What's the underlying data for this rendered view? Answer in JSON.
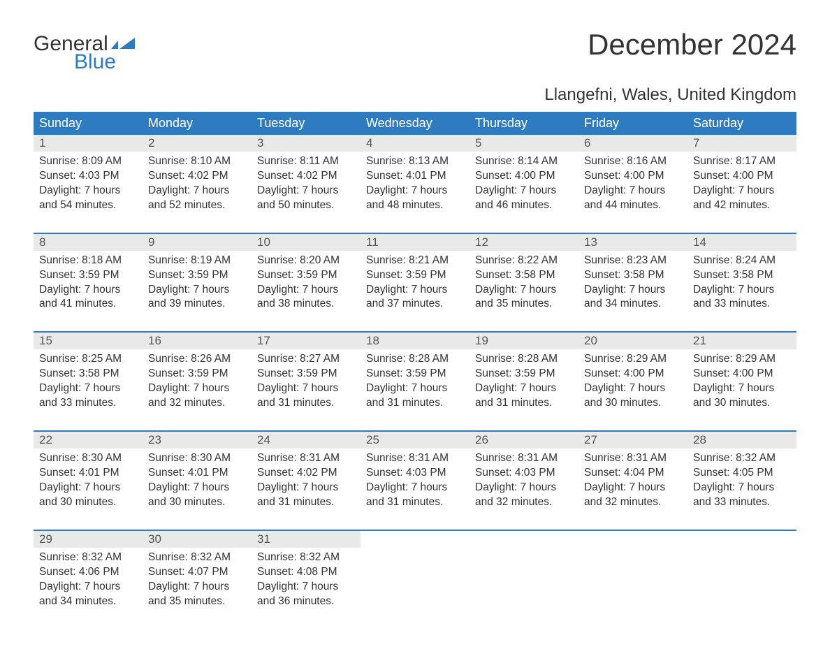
{
  "brand": {
    "line1": "General",
    "line2": "Blue"
  },
  "title": "December 2024",
  "location": "Llangefni, Wales, United Kingdom",
  "colors": {
    "header_bg": "#2f7bbf",
    "header_fg": "#ffffff",
    "daynum_bg": "#e9e9e9",
    "daynum_fg": "#555555",
    "text": "#333333",
    "week_divider": "#2f7bbf",
    "background": "#ffffff",
    "logo_blue": "#2f7bbf"
  },
  "typography": {
    "title_fontsize_pt": 32,
    "location_fontsize_pt": 18,
    "header_fontsize_pt": 13,
    "daynum_fontsize_pt": 13,
    "body_fontsize_pt": 11.5,
    "font_family": "Arial"
  },
  "calendar": {
    "columns": [
      "Sunday",
      "Monday",
      "Tuesday",
      "Wednesday",
      "Thursday",
      "Friday",
      "Saturday"
    ],
    "weeks": [
      [
        {
          "day": "1",
          "sunrise": "8:09 AM",
          "sunset": "4:03 PM",
          "daylight_h": 7,
          "daylight_m": 54
        },
        {
          "day": "2",
          "sunrise": "8:10 AM",
          "sunset": "4:02 PM",
          "daylight_h": 7,
          "daylight_m": 52
        },
        {
          "day": "3",
          "sunrise": "8:11 AM",
          "sunset": "4:02 PM",
          "daylight_h": 7,
          "daylight_m": 50
        },
        {
          "day": "4",
          "sunrise": "8:13 AM",
          "sunset": "4:01 PM",
          "daylight_h": 7,
          "daylight_m": 48
        },
        {
          "day": "5",
          "sunrise": "8:14 AM",
          "sunset": "4:00 PM",
          "daylight_h": 7,
          "daylight_m": 46
        },
        {
          "day": "6",
          "sunrise": "8:16 AM",
          "sunset": "4:00 PM",
          "daylight_h": 7,
          "daylight_m": 44
        },
        {
          "day": "7",
          "sunrise": "8:17 AM",
          "sunset": "4:00 PM",
          "daylight_h": 7,
          "daylight_m": 42
        }
      ],
      [
        {
          "day": "8",
          "sunrise": "8:18 AM",
          "sunset": "3:59 PM",
          "daylight_h": 7,
          "daylight_m": 41
        },
        {
          "day": "9",
          "sunrise": "8:19 AM",
          "sunset": "3:59 PM",
          "daylight_h": 7,
          "daylight_m": 39
        },
        {
          "day": "10",
          "sunrise": "8:20 AM",
          "sunset": "3:59 PM",
          "daylight_h": 7,
          "daylight_m": 38
        },
        {
          "day": "11",
          "sunrise": "8:21 AM",
          "sunset": "3:59 PM",
          "daylight_h": 7,
          "daylight_m": 37
        },
        {
          "day": "12",
          "sunrise": "8:22 AM",
          "sunset": "3:58 PM",
          "daylight_h": 7,
          "daylight_m": 35
        },
        {
          "day": "13",
          "sunrise": "8:23 AM",
          "sunset": "3:58 PM",
          "daylight_h": 7,
          "daylight_m": 34
        },
        {
          "day": "14",
          "sunrise": "8:24 AM",
          "sunset": "3:58 PM",
          "daylight_h": 7,
          "daylight_m": 33
        }
      ],
      [
        {
          "day": "15",
          "sunrise": "8:25 AM",
          "sunset": "3:58 PM",
          "daylight_h": 7,
          "daylight_m": 33
        },
        {
          "day": "16",
          "sunrise": "8:26 AM",
          "sunset": "3:59 PM",
          "daylight_h": 7,
          "daylight_m": 32
        },
        {
          "day": "17",
          "sunrise": "8:27 AM",
          "sunset": "3:59 PM",
          "daylight_h": 7,
          "daylight_m": 31
        },
        {
          "day": "18",
          "sunrise": "8:28 AM",
          "sunset": "3:59 PM",
          "daylight_h": 7,
          "daylight_m": 31
        },
        {
          "day": "19",
          "sunrise": "8:28 AM",
          "sunset": "3:59 PM",
          "daylight_h": 7,
          "daylight_m": 31
        },
        {
          "day": "20",
          "sunrise": "8:29 AM",
          "sunset": "4:00 PM",
          "daylight_h": 7,
          "daylight_m": 30
        },
        {
          "day": "21",
          "sunrise": "8:29 AM",
          "sunset": "4:00 PM",
          "daylight_h": 7,
          "daylight_m": 30
        }
      ],
      [
        {
          "day": "22",
          "sunrise": "8:30 AM",
          "sunset": "4:01 PM",
          "daylight_h": 7,
          "daylight_m": 30
        },
        {
          "day": "23",
          "sunrise": "8:30 AM",
          "sunset": "4:01 PM",
          "daylight_h": 7,
          "daylight_m": 30
        },
        {
          "day": "24",
          "sunrise": "8:31 AM",
          "sunset": "4:02 PM",
          "daylight_h": 7,
          "daylight_m": 31
        },
        {
          "day": "25",
          "sunrise": "8:31 AM",
          "sunset": "4:03 PM",
          "daylight_h": 7,
          "daylight_m": 31
        },
        {
          "day": "26",
          "sunrise": "8:31 AM",
          "sunset": "4:03 PM",
          "daylight_h": 7,
          "daylight_m": 32
        },
        {
          "day": "27",
          "sunrise": "8:31 AM",
          "sunset": "4:04 PM",
          "daylight_h": 7,
          "daylight_m": 32
        },
        {
          "day": "28",
          "sunrise": "8:32 AM",
          "sunset": "4:05 PM",
          "daylight_h": 7,
          "daylight_m": 33
        }
      ],
      [
        {
          "day": "29",
          "sunrise": "8:32 AM",
          "sunset": "4:06 PM",
          "daylight_h": 7,
          "daylight_m": 34
        },
        {
          "day": "30",
          "sunrise": "8:32 AM",
          "sunset": "4:07 PM",
          "daylight_h": 7,
          "daylight_m": 35
        },
        {
          "day": "31",
          "sunrise": "8:32 AM",
          "sunset": "4:08 PM",
          "daylight_h": 7,
          "daylight_m": 36
        },
        null,
        null,
        null,
        null
      ]
    ],
    "labels": {
      "sunrise_prefix": "Sunrise: ",
      "sunset_prefix": "Sunset: ",
      "daylight_prefix": "Daylight: ",
      "hours_word": " hours",
      "and_word": "and ",
      "minutes_word": " minutes."
    }
  }
}
